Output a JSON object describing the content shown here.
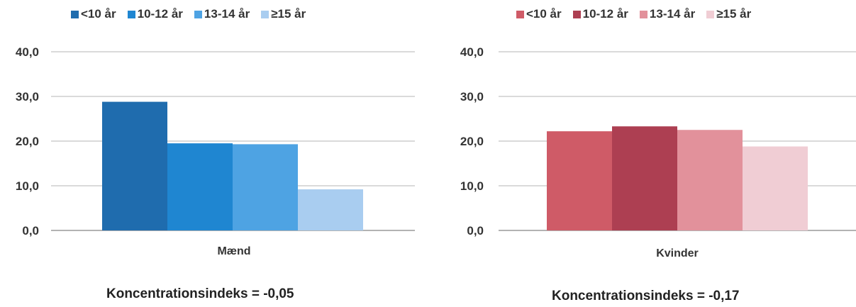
{
  "charts": [
    {
      "id": "left",
      "chart_data": {
        "type": "bar",
        "categories": [
          "Mænd"
        ],
        "series": [
          {
            "name": "<10 år",
            "values": [
              28.8
            ],
            "color": "#1f6cae"
          },
          {
            "name": "10-12 år",
            "values": [
              19.5
            ],
            "color": "#1f86d1"
          },
          {
            "name": "13-14 år",
            "values": [
              19.3
            ],
            "color": "#4ea3e3"
          },
          {
            "name": "≥15 år",
            "values": [
              9.2
            ],
            "color": "#a9cdf0"
          }
        ],
        "ylim": [
          0,
          40
        ],
        "yticks": [
          "0,0",
          "10,0",
          "20,0",
          "30,0",
          "40,0"
        ],
        "ytick_values": [
          0,
          10,
          20,
          30,
          40
        ],
        "grid": true,
        "legend_position": "top"
      },
      "caption": "Koncentrationsindeks = -0,05"
    },
    {
      "id": "right",
      "chart_data": {
        "type": "bar",
        "categories": [
          "Kvinder"
        ],
        "series": [
          {
            "name": "<10 år",
            "values": [
              22.2
            ],
            "color": "#cf5b67"
          },
          {
            "name": "10-12 år",
            "values": [
              23.3
            ],
            "color": "#ad3f52"
          },
          {
            "name": "13-14 år",
            "values": [
              22.5
            ],
            "color": "#e2919b"
          },
          {
            "name": "≥15 år",
            "values": [
              18.8
            ],
            "color": "#f0cdd4"
          }
        ],
        "ylim": [
          0,
          40
        ],
        "yticks": [
          "0,0",
          "10,0",
          "20,0",
          "30,0",
          "40,0"
        ],
        "ytick_values": [
          0,
          10,
          20,
          30,
          40
        ],
        "grid": true,
        "legend_position": "top"
      },
      "caption": "Koncentrationsindeks = -0,17"
    }
  ]
}
